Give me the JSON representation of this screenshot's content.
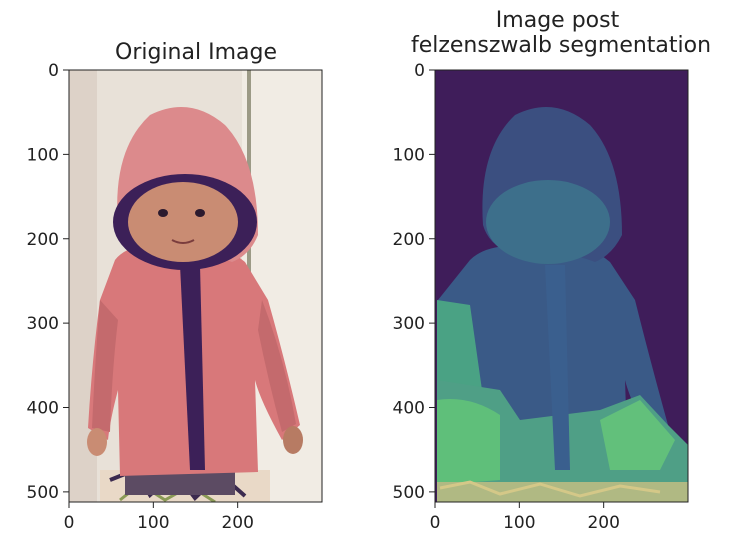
{
  "chart_data": [
    {
      "type": "image",
      "title": "Original Image",
      "xlim": [
        0,
        300
      ],
      "ylim": [
        512,
        0
      ],
      "xticks": [
        0,
        100,
        200
      ],
      "yticks": [
        0,
        100,
        200,
        300,
        400,
        500
      ],
      "grid": false,
      "colors": {
        "wall": "#ece6dd",
        "door": "#efe9df",
        "hoodie": "#d8787a",
        "hoodie_shadow": "#b65c60",
        "hood_lining": "#3c2058",
        "skin": "#c98c73",
        "floor_pattern": "#e9d9c7"
      }
    },
    {
      "type": "image",
      "title": "Image post\nfelzenszwalb segmentation",
      "colormap": "viridis",
      "xlim": [
        0,
        300
      ],
      "ylim": [
        512,
        0
      ],
      "xticks": [
        0,
        100,
        200
      ],
      "yticks": [
        0,
        100,
        200,
        300,
        400,
        500
      ],
      "grid": false,
      "colors": {
        "background": "#3f1d5a",
        "body": "#3a5a87",
        "face": "#3d6f8b",
        "lower": "#4aa284",
        "bright": "#5fbf7a",
        "floor": "#b0b983"
      }
    }
  ]
}
